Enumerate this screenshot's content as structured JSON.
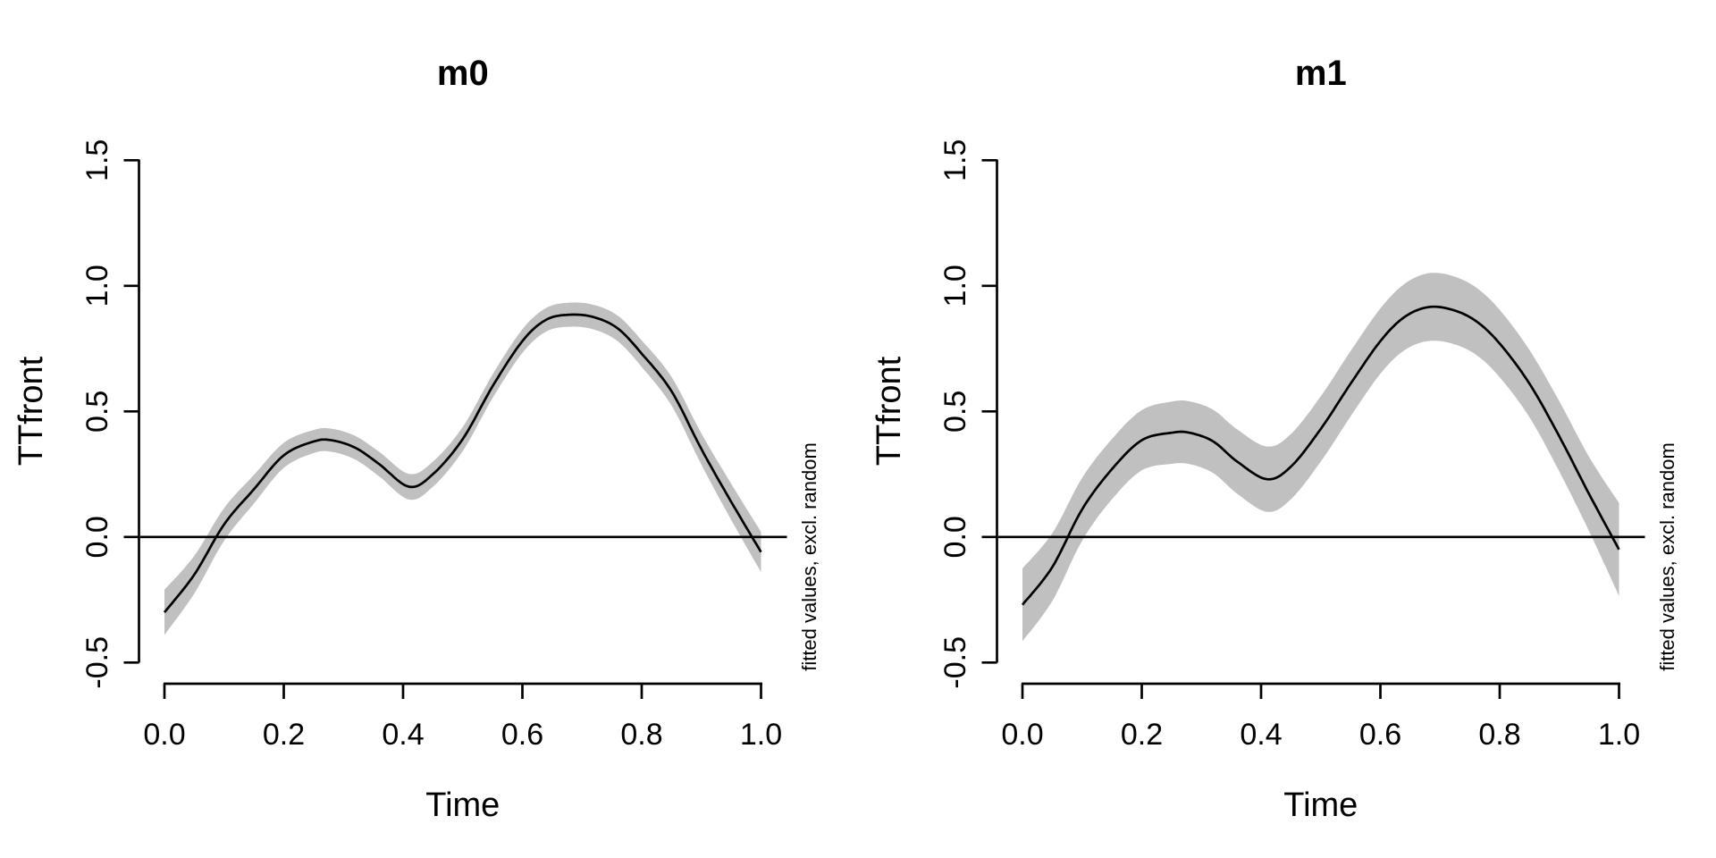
{
  "figure": {
    "background": "#ffffff",
    "kind": "R base-graphics GAM smooth plots, two panels side by side"
  },
  "colors": {
    "axis": "#000000",
    "fit_line": "#000000",
    "confidence_band": "#c0c0c0",
    "right_note_text": "#7a7a7a",
    "background": "#ffffff"
  },
  "chart_data": [
    {
      "type": "line",
      "title": "m0",
      "xlabel": "Time",
      "ylabel": "TTfront",
      "right_label": "fitted values, excl. random",
      "legend_position": "none",
      "grid": false,
      "xlim": [
        0,
        1
      ],
      "ylim": [
        -0.5,
        1.5
      ],
      "x_ticks": [
        0.0,
        0.2,
        0.4,
        0.6,
        0.8,
        1.0
      ],
      "x_tick_labels": [
        "0.0",
        "0.2",
        "0.4",
        "0.6",
        "0.8",
        "1.0"
      ],
      "y_ticks": [
        -0.5,
        0.0,
        0.5,
        1.0,
        1.5
      ],
      "y_tick_labels": [
        "-0.5",
        "0.0",
        "0.5",
        "1.0",
        "1.5"
      ],
      "hline": 0,
      "x": [
        0.0,
        0.05,
        0.1,
        0.15,
        0.2,
        0.25,
        0.28,
        0.32,
        0.36,
        0.41,
        0.45,
        0.5,
        0.55,
        0.6,
        0.64,
        0.68,
        0.72,
        0.76,
        0.8,
        0.85,
        0.9,
        0.95,
        1.0
      ],
      "fit": [
        -0.3,
        -0.15,
        0.05,
        0.19,
        0.325,
        0.38,
        0.385,
        0.355,
        0.29,
        0.2,
        0.25,
        0.39,
        0.6,
        0.78,
        0.865,
        0.885,
        0.875,
        0.83,
        0.73,
        0.58,
        0.35,
        0.14,
        -0.06
      ],
      "ci_halfwidth": [
        0.09,
        0.075,
        0.065,
        0.057,
        0.05,
        0.046,
        0.046,
        0.047,
        0.049,
        0.051,
        0.05,
        0.048,
        0.047,
        0.047,
        0.047,
        0.048,
        0.049,
        0.051,
        0.053,
        0.057,
        0.062,
        0.072,
        0.08
      ]
    },
    {
      "type": "line",
      "title": "m1",
      "xlabel": "Time",
      "ylabel": "TTfront",
      "right_label": "fitted values, excl. random",
      "legend_position": "none",
      "grid": false,
      "xlim": [
        0,
        1
      ],
      "ylim": [
        -0.5,
        1.5
      ],
      "x_ticks": [
        0.0,
        0.2,
        0.4,
        0.6,
        0.8,
        1.0
      ],
      "x_tick_labels": [
        "0.0",
        "0.2",
        "0.4",
        "0.6",
        "0.8",
        "1.0"
      ],
      "y_ticks": [
        -0.5,
        0.0,
        0.5,
        1.0,
        1.5
      ],
      "y_tick_labels": [
        "-0.5",
        "0.0",
        "0.5",
        "1.0",
        "1.5"
      ],
      "hline": 0,
      "x": [
        0.0,
        0.05,
        0.1,
        0.15,
        0.2,
        0.25,
        0.28,
        0.32,
        0.36,
        0.41,
        0.45,
        0.5,
        0.55,
        0.6,
        0.64,
        0.68,
        0.72,
        0.76,
        0.8,
        0.85,
        0.9,
        0.95,
        1.0
      ],
      "fit": [
        -0.27,
        -0.12,
        0.11,
        0.27,
        0.385,
        0.415,
        0.415,
        0.38,
        0.3,
        0.23,
        0.28,
        0.43,
        0.61,
        0.78,
        0.875,
        0.915,
        0.905,
        0.86,
        0.77,
        0.61,
        0.4,
        0.17,
        -0.05
      ],
      "ci_halfwidth": [
        0.145,
        0.135,
        0.125,
        0.12,
        0.12,
        0.124,
        0.125,
        0.126,
        0.128,
        0.13,
        0.13,
        0.13,
        0.13,
        0.13,
        0.132,
        0.135,
        0.135,
        0.134,
        0.134,
        0.134,
        0.14,
        0.148,
        0.185
      ]
    }
  ]
}
